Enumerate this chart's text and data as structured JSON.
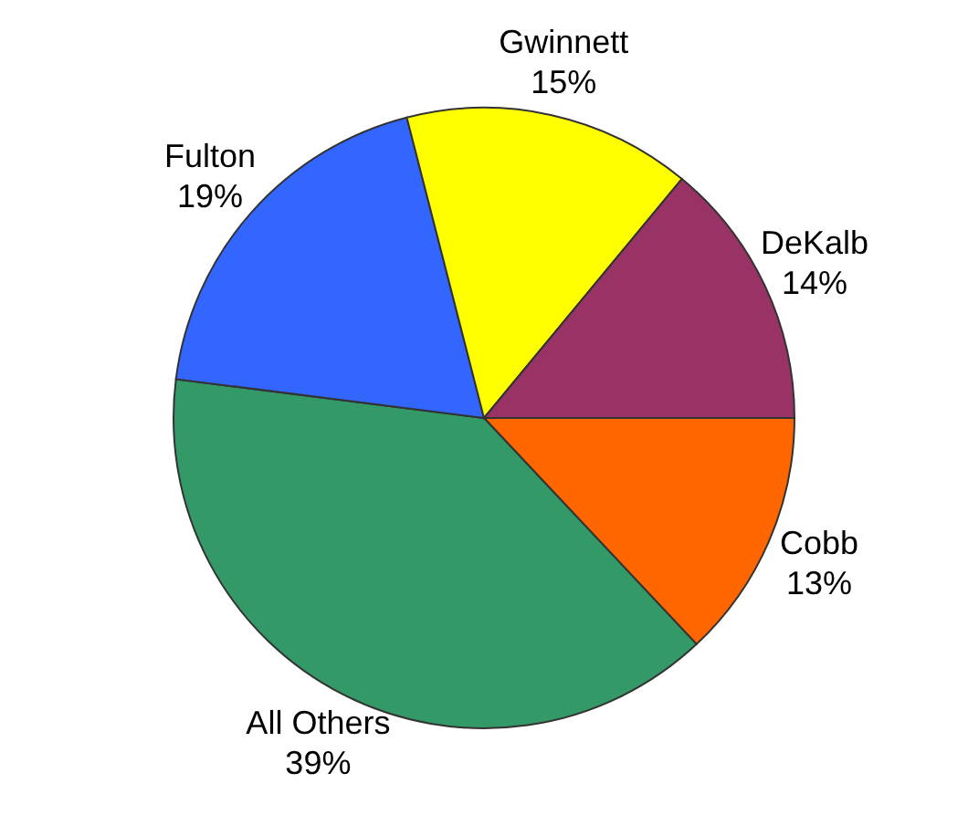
{
  "chart_data": {
    "type": "pie",
    "categories": [
      "Cobb",
      "All Others",
      "Fulton",
      "Gwinnett",
      "DeKalb"
    ],
    "values": [
      13,
      39,
      19,
      15,
      14
    ],
    "colors": [
      "#ff6600",
      "#339966",
      "#3366ff",
      "#ffff00",
      "#993366"
    ],
    "value_labels": [
      "13%",
      "39%",
      "19%",
      "15%",
      "14%"
    ],
    "legend": false
  }
}
